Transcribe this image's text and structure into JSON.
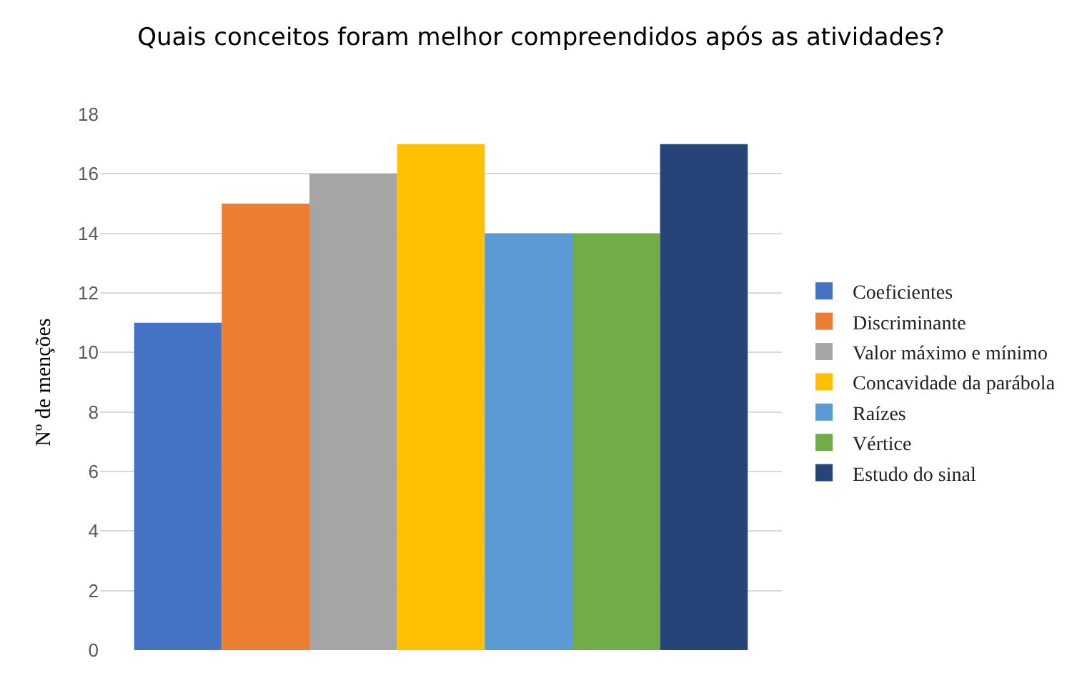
{
  "chart_data": {
    "type": "bar",
    "title": "Quais conceitos foram melhor compreendidos após as atividades?",
    "ylabel": "Nº de menções",
    "categories": [
      null
    ],
    "series": [
      {
        "name": "Coeficientes",
        "color": "#4472c4",
        "values": [
          11
        ]
      },
      {
        "name": "Discriminante",
        "color": "#ed7d31",
        "values": [
          15
        ]
      },
      {
        "name": "Valor máximo e mínimo",
        "color": "#a5a5a5",
        "values": [
          16
        ]
      },
      {
        "name": "Concavidade da parábola",
        "color": "#ffc000",
        "values": [
          17
        ]
      },
      {
        "name": "Raízes",
        "color": "#5b9bd5",
        "values": [
          14
        ]
      },
      {
        "name": "Vértice",
        "color": "#70ad47",
        "values": [
          14
        ]
      },
      {
        "name": "Estudo do sinal",
        "color": "#264478",
        "values": [
          17
        ]
      }
    ],
    "ylim": [
      0,
      18
    ],
    "yticks": [
      0,
      2,
      4,
      6,
      8,
      10,
      12,
      14,
      16,
      18
    ],
    "grid": "y",
    "legend": "right"
  }
}
